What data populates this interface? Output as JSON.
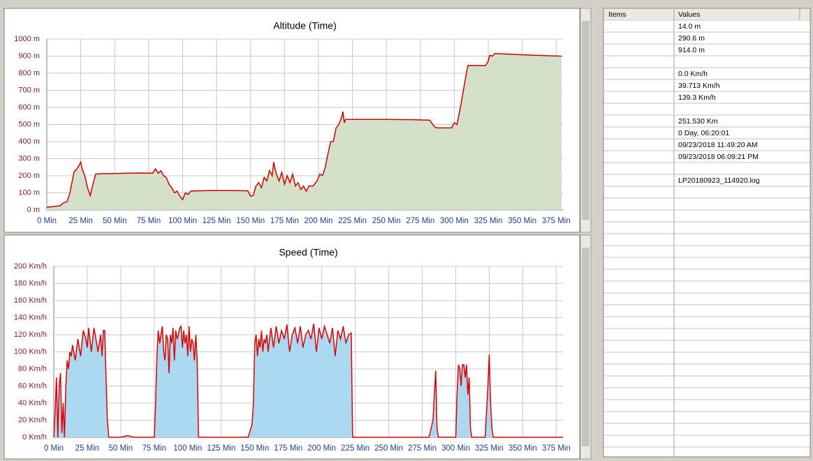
{
  "chart_data": [
    {
      "type": "area",
      "title": "Altitude (Time)",
      "xlim": [
        0,
        380
      ],
      "ylim": [
        0,
        1000
      ],
      "grid": true,
      "xticks": [
        {
          "value": 0,
          "label": "0 Min"
        },
        {
          "value": 25,
          "label": "25 Min"
        },
        {
          "value": 50,
          "label": "50 Min"
        },
        {
          "value": 75,
          "label": "75 Min"
        },
        {
          "value": 100,
          "label": "100 Min"
        },
        {
          "value": 125,
          "label": "125 Min"
        },
        {
          "value": 150,
          "label": "150 Min"
        },
        {
          "value": 175,
          "label": "175 Min"
        },
        {
          "value": 200,
          "label": "200 Min"
        },
        {
          "value": 225,
          "label": "225 Min"
        },
        {
          "value": 250,
          "label": "250 Min"
        },
        {
          "value": 275,
          "label": "275 Min"
        },
        {
          "value": 300,
          "label": "300 Min"
        },
        {
          "value": 325,
          "label": "325 Min"
        },
        {
          "value": 350,
          "label": "350 Min"
        },
        {
          "value": 375,
          "label": "375 Min"
        }
      ],
      "yticks": [
        {
          "value": 0,
          "label": "0 m"
        },
        {
          "value": 100,
          "label": "100 m"
        },
        {
          "value": 200,
          "label": "200 m"
        },
        {
          "value": 300,
          "label": "300 m"
        },
        {
          "value": 400,
          "label": "400 m"
        },
        {
          "value": 500,
          "label": "500 m"
        },
        {
          "value": 600,
          "label": "600 m"
        },
        {
          "value": 700,
          "label": "700 m"
        },
        {
          "value": 800,
          "label": "800 m"
        },
        {
          "value": 900,
          "label": "900 m"
        },
        {
          "value": 1000,
          "label": "1000 m"
        }
      ],
      "x": [
        0,
        5,
        10,
        12,
        15,
        17,
        20,
        23,
        25,
        26,
        28,
        30,
        32,
        34,
        36,
        40,
        50,
        60,
        70,
        78,
        80,
        82,
        84,
        86,
        88,
        90,
        92,
        94,
        96,
        98,
        100,
        102,
        104,
        106,
        110,
        120,
        130,
        140,
        148,
        150,
        152,
        154,
        156,
        158,
        160,
        162,
        164,
        166,
        167,
        169,
        171,
        173,
        175,
        177,
        179,
        181,
        183,
        185,
        187,
        189,
        191,
        193,
        196,
        199,
        201,
        203,
        205,
        207,
        209,
        211,
        213,
        215,
        217,
        218,
        219,
        220,
        230,
        250,
        270,
        282,
        285,
        287,
        295,
        298,
        300,
        302,
        305,
        308,
        310,
        320,
        323,
        325,
        326,
        328,
        330,
        340,
        350,
        360,
        370,
        379
      ],
      "series": [
        {
          "color": "#cc0000",
          "fill": "#d5e0c9",
          "values": [
            15,
            20,
            25,
            40,
            50,
            100,
            220,
            250,
            280,
            240,
            200,
            130,
            85,
            150,
            210,
            212,
            213,
            215,
            216,
            215,
            240,
            215,
            230,
            200,
            190,
            150,
            130,
            100,
            110,
            80,
            60,
            100,
            90,
            110,
            112,
            113,
            113,
            113,
            112,
            80,
            85,
            140,
            160,
            130,
            190,
            170,
            230,
            200,
            280,
            210,
            170,
            220,
            150,
            200,
            160,
            210,
            140,
            160,
            120,
            140,
            110,
            140,
            140,
            170,
            210,
            200,
            250,
            330,
            400,
            400,
            480,
            500,
            540,
            575,
            510,
            530,
            530,
            530,
            528,
            525,
            490,
            480,
            480,
            480,
            510,
            500,
            620,
            760,
            845,
            845,
            845,
            870,
            905,
            900,
            915,
            912,
            908,
            905,
            902,
            900
          ]
        }
      ]
    },
    {
      "type": "area",
      "title": "Speed (Time)",
      "xlim": [
        0,
        380
      ],
      "ylim": [
        0,
        200
      ],
      "grid": true,
      "xticks": [
        {
          "value": 0,
          "label": "0 Min"
        },
        {
          "value": 25,
          "label": "25 Min"
        },
        {
          "value": 50,
          "label": "50 Min"
        },
        {
          "value": 75,
          "label": "75 Min"
        },
        {
          "value": 100,
          "label": "100 Min"
        },
        {
          "value": 125,
          "label": "125 Min"
        },
        {
          "value": 150,
          "label": "150 Min"
        },
        {
          "value": 175,
          "label": "175 Min"
        },
        {
          "value": 200,
          "label": "200 Min"
        },
        {
          "value": 225,
          "label": "225 Min"
        },
        {
          "value": 250,
          "label": "250 Min"
        },
        {
          "value": 275,
          "label": "275 Min"
        },
        {
          "value": 300,
          "label": "300 Min"
        },
        {
          "value": 325,
          "label": "325 Min"
        },
        {
          "value": 350,
          "label": "350 Min"
        },
        {
          "value": 375,
          "label": "375 Min"
        }
      ],
      "yticks": [
        {
          "value": 0,
          "label": "0 Km/h"
        },
        {
          "value": 20,
          "label": "20 Km/h"
        },
        {
          "value": 40,
          "label": "40 Km/h"
        },
        {
          "value": 60,
          "label": "60 Km/h"
        },
        {
          "value": 80,
          "label": "80 Km/h"
        },
        {
          "value": 100,
          "label": "100 Km/h"
        },
        {
          "value": 120,
          "label": "120 Km/h"
        },
        {
          "value": 140,
          "label": "140 Km/h"
        },
        {
          "value": 160,
          "label": "160 Km/h"
        },
        {
          "value": 180,
          "label": "180 Km/h"
        },
        {
          "value": 200,
          "label": "200 Km/h"
        }
      ],
      "x": [
        0,
        1,
        2,
        3,
        4,
        5,
        6,
        7,
        8,
        9,
        10,
        11,
        12,
        13,
        14,
        16,
        18,
        20,
        22,
        24,
        25,
        26,
        28,
        30,
        32,
        33,
        35,
        36,
        37,
        38,
        39,
        40,
        41,
        45,
        50,
        55,
        60,
        65,
        70,
        75,
        76,
        77,
        78,
        79,
        80,
        81,
        82,
        83,
        84,
        85,
        86,
        87,
        88,
        89,
        90,
        91,
        92,
        93,
        94,
        95,
        96,
        97,
        98,
        99,
        100,
        101,
        102,
        103,
        104,
        105,
        106,
        107,
        108,
        110,
        120,
        130,
        140,
        145,
        146,
        147,
        148,
        149,
        150,
        151,
        152,
        153,
        154,
        155,
        156,
        157,
        158,
        159,
        160,
        162,
        164,
        166,
        168,
        170,
        172,
        174,
        176,
        178,
        180,
        182,
        184,
        186,
        188,
        190,
        192,
        194,
        196,
        198,
        200,
        202,
        204,
        206,
        208,
        210,
        212,
        214,
        216,
        218,
        220,
        222,
        223,
        225,
        240,
        260,
        280,
        283,
        285,
        286,
        287,
        295,
        300,
        301,
        302,
        303,
        304,
        305,
        306,
        307,
        308,
        309,
        310,
        311,
        312,
        320,
        322,
        323,
        324,
        325,
        326,
        327,
        328,
        340,
        360,
        380
      ],
      "series": [
        {
          "color": "#dd0000",
          "fill": "#acd9f2",
          "values": [
            0,
            30,
            70,
            0,
            60,
            75,
            5,
            40,
            0,
            60,
            90,
            80,
            100,
            95,
            108,
            90,
            115,
            95,
            125,
            115,
            105,
            128,
            100,
            128,
            110,
            100,
            120,
            95,
            125,
            125,
            70,
            20,
            0,
            0,
            0,
            2,
            0,
            0,
            0,
            0,
            40,
            95,
            125,
            110,
            120,
            130,
            100,
            90,
            120,
            115,
            75,
            120,
            110,
            128,
            90,
            125,
            115,
            120,
            128,
            130,
            105,
            125,
            110,
            120,
            95,
            130,
            100,
            115,
            110,
            90,
            120,
            90,
            0,
            0,
            0,
            0,
            0,
            0,
            5,
            10,
            15,
            40,
            110,
            120,
            95,
            115,
            105,
            125,
            100,
            115,
            110,
            120,
            100,
            128,
            105,
            130,
            110,
            125,
            115,
            132,
            100,
            120,
            128,
            110,
            130,
            105,
            120,
            125,
            115,
            133,
            100,
            128,
            115,
            130,
            120,
            110,
            128,
            95,
            125,
            115,
            130,
            110,
            120,
            122,
            0,
            0,
            0,
            0,
            0,
            20,
            78,
            10,
            0,
            0,
            0,
            50,
            85,
            80,
            60,
            85,
            85,
            70,
            85,
            50,
            70,
            10,
            0,
            0,
            0,
            30,
            60,
            97,
            40,
            10,
            0,
            0,
            0,
            0
          ]
        }
      ]
    }
  ],
  "table": {
    "columns": [
      "Items",
      "Values"
    ],
    "groups": [
      [
        "14.0 m",
        "290.6 m",
        "914.0 m"
      ],
      [
        "0.0 Km/h",
        "39.713 Km/h",
        "139.3 Km/h"
      ],
      [
        "251.530 Km",
        "0 Day, 06:20:01",
        "09/23/2018 11:49:20 AM",
        "09/23/2018 06:09:21 PM"
      ],
      [
        "LP20180923_114920.log"
      ]
    ]
  }
}
